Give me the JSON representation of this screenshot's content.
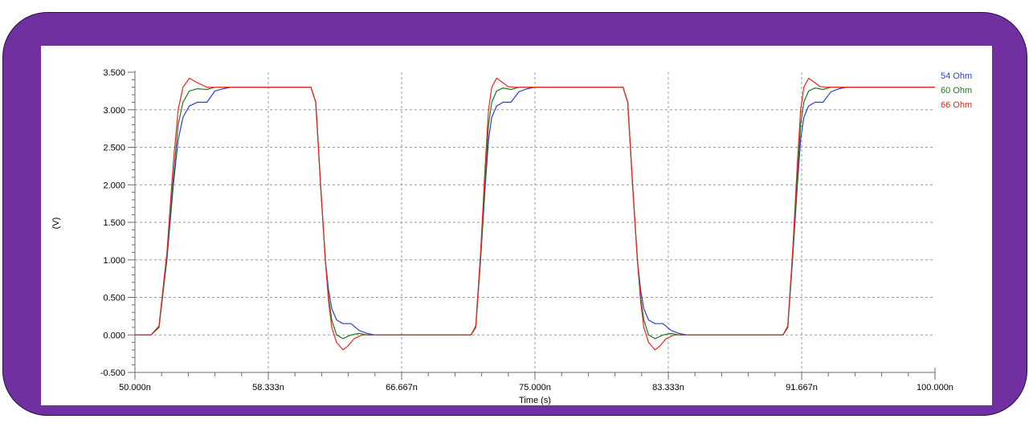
{
  "chart_data": {
    "type": "line",
    "xlabel": "Time (s)",
    "ylabel": "(V)",
    "xlim": [
      50.0,
      100.0
    ],
    "ylim": [
      -0.5,
      3.5
    ],
    "x_ticks": [
      50.0,
      58.333,
      66.667,
      75.0,
      83.333,
      91.667,
      100.0
    ],
    "x_tick_labels": [
      "50.000n",
      "58.333n",
      "66.667n",
      "75.000n",
      "83.333n",
      "91.667n",
      "100.000n"
    ],
    "y_ticks": [
      -0.5,
      0.0,
      0.5,
      1.0,
      1.5,
      2.0,
      2.5,
      3.0,
      3.5
    ],
    "y_tick_labels": [
      "-0.500",
      "0.000",
      "0.500",
      "1.000",
      "1.500",
      "2.000",
      "2.500",
      "3.000",
      "3.500"
    ],
    "grid": true,
    "legend_position": "right-top",
    "series": [
      {
        "name": "54 Ohm",
        "color": "#2a3fd6",
        "x": [
          50.0,
          51.0,
          51.5,
          52.0,
          52.4,
          52.7,
          53.0,
          53.4,
          53.9,
          54.5,
          55.0,
          55.5,
          56.0,
          61.0,
          61.3,
          61.6,
          61.9,
          62.1,
          62.3,
          62.6,
          63.0,
          63.5,
          64.0,
          64.5,
          65.0,
          65.5,
          66.0,
          71.0,
          71.3,
          71.6,
          71.9,
          72.1,
          72.3,
          72.6,
          73.0,
          73.5,
          74.0,
          74.5,
          75.0,
          80.5,
          80.8,
          81.1,
          81.4,
          81.6,
          81.8,
          82.1,
          82.5,
          83.0,
          83.5,
          84.0,
          84.5,
          85.0,
          90.5,
          90.8,
          91.1,
          91.4,
          91.6,
          91.8,
          92.1,
          92.5,
          93.0,
          93.5,
          94.0,
          94.5,
          95.0,
          100.0
        ],
        "y": [
          0.0,
          0.0,
          0.1,
          1.0,
          2.0,
          2.6,
          2.9,
          3.05,
          3.1,
          3.1,
          3.25,
          3.28,
          3.3,
          3.3,
          3.1,
          2.0,
          1.0,
          0.6,
          0.35,
          0.2,
          0.15,
          0.15,
          0.06,
          0.02,
          0.0,
          0.0,
          0.0,
          0.0,
          0.1,
          1.0,
          2.0,
          2.6,
          2.9,
          3.05,
          3.1,
          3.1,
          3.24,
          3.28,
          3.3,
          3.3,
          3.1,
          2.0,
          1.0,
          0.6,
          0.35,
          0.2,
          0.15,
          0.15,
          0.06,
          0.02,
          0.0,
          0.0,
          0.0,
          0.1,
          1.0,
          2.0,
          2.6,
          2.9,
          3.05,
          3.1,
          3.1,
          3.24,
          3.28,
          3.3,
          3.3,
          3.3
        ]
      },
      {
        "name": "60 Ohm",
        "color": "#1e7a1e",
        "x": [
          50.0,
          51.0,
          51.5,
          52.0,
          52.4,
          52.7,
          53.0,
          53.4,
          53.9,
          54.5,
          55.0,
          56.0,
          61.0,
          61.3,
          61.6,
          61.9,
          62.1,
          62.3,
          62.6,
          63.0,
          63.5,
          64.0,
          64.5,
          65.0,
          66.0,
          71.0,
          71.3,
          71.6,
          71.9,
          72.1,
          72.3,
          72.6,
          73.0,
          73.5,
          74.0,
          74.5,
          75.0,
          80.5,
          80.8,
          81.1,
          81.4,
          81.6,
          81.8,
          82.1,
          82.5,
          83.0,
          83.5,
          84.0,
          84.5,
          85.0,
          90.5,
          90.8,
          91.1,
          91.4,
          91.6,
          91.8,
          92.1,
          92.5,
          93.0,
          93.5,
          94.0,
          94.5,
          95.0,
          100.0
        ],
        "y": [
          0.0,
          0.0,
          0.1,
          1.05,
          2.1,
          2.8,
          3.1,
          3.25,
          3.28,
          3.27,
          3.3,
          3.3,
          3.3,
          3.1,
          2.0,
          1.0,
          0.5,
          0.2,
          0.0,
          -0.05,
          0.0,
          0.02,
          0.0,
          0.0,
          0.0,
          0.0,
          0.1,
          1.05,
          2.1,
          2.8,
          3.1,
          3.25,
          3.29,
          3.27,
          3.3,
          3.3,
          3.3,
          3.3,
          3.1,
          2.0,
          1.0,
          0.5,
          0.2,
          0.0,
          -0.05,
          0.0,
          0.02,
          0.0,
          0.0,
          0.0,
          0.0,
          0.1,
          1.05,
          2.1,
          2.8,
          3.1,
          3.25,
          3.29,
          3.27,
          3.3,
          3.3,
          3.3,
          3.3,
          3.3
        ]
      },
      {
        "name": "66 Ohm",
        "color": "#e8281e",
        "x": [
          50.0,
          51.0,
          51.5,
          52.0,
          52.4,
          52.7,
          53.0,
          53.4,
          53.9,
          54.5,
          55.0,
          56.0,
          61.0,
          61.3,
          61.6,
          61.9,
          62.1,
          62.3,
          62.6,
          63.0,
          63.3,
          63.7,
          64.2,
          64.8,
          65.5,
          66.0,
          71.0,
          71.3,
          71.6,
          71.9,
          72.1,
          72.3,
          72.6,
          73.0,
          73.3,
          73.7,
          74.2,
          74.8,
          75.5,
          80.5,
          80.8,
          81.1,
          81.4,
          81.6,
          81.8,
          82.1,
          82.5,
          82.8,
          83.2,
          83.7,
          84.3,
          85.0,
          90.5,
          90.8,
          91.1,
          91.4,
          91.6,
          91.8,
          92.1,
          92.5,
          92.8,
          93.2,
          93.7,
          94.3,
          95.0,
          100.0
        ],
        "y": [
          0.0,
          0.0,
          0.12,
          1.1,
          2.3,
          3.0,
          3.3,
          3.42,
          3.36,
          3.3,
          3.3,
          3.3,
          3.3,
          3.1,
          2.0,
          1.0,
          0.45,
          0.1,
          -0.1,
          -0.2,
          -0.15,
          -0.05,
          0.0,
          0.0,
          0.0,
          0.0,
          0.0,
          0.12,
          1.1,
          2.3,
          3.0,
          3.3,
          3.42,
          3.36,
          3.31,
          3.3,
          3.3,
          3.3,
          3.3,
          3.3,
          3.1,
          2.0,
          1.0,
          0.45,
          0.1,
          -0.1,
          -0.2,
          -0.15,
          -0.05,
          0.0,
          0.0,
          0.0,
          0.0,
          0.12,
          1.1,
          2.3,
          3.0,
          3.3,
          3.42,
          3.36,
          3.31,
          3.3,
          3.3,
          3.3,
          3.3,
          3.3
        ]
      }
    ],
    "background": "#ffffff",
    "frame_color": "#7030a0"
  }
}
